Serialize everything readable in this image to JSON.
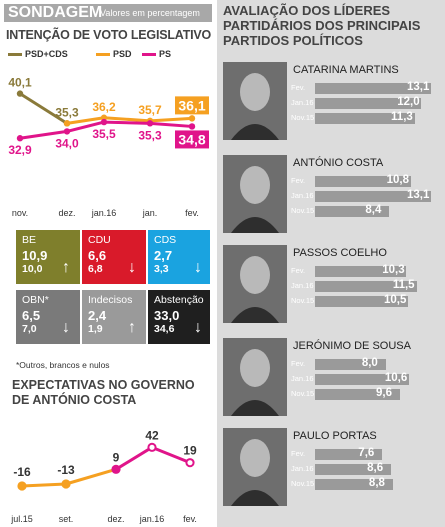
{
  "header": {
    "title": "SONDAGEM",
    "subtitle": "Valores em percentagem"
  },
  "vote_section": {
    "title": "INTENÇÃO DE VOTO LEGISLATIVO"
  },
  "parties": [
    {
      "name": "BE",
      "v_new": "10,9",
      "v_old": "10,0",
      "arrow": "up",
      "color": "#7f7f2c"
    },
    {
      "name": "CDU",
      "v_new": "6,6",
      "v_old": "6,8",
      "arrow": "down",
      "color": "#d91a2a"
    },
    {
      "name": "CDS",
      "v_new": "2,7",
      "v_old": "3,3",
      "arrow": "down",
      "color": "#1aa3e0"
    },
    {
      "name": "OBN*",
      "v_new": "6,5",
      "v_old": "7,0",
      "arrow": "down",
      "color": "#7a7a7a"
    },
    {
      "name": "Indecisos",
      "v_new": "2,4",
      "v_old": "1,9",
      "arrow": "up",
      "color": "#9a9a9a"
    },
    {
      "name": "Abstenção",
      "v_new": "33,0",
      "v_old": "34,6",
      "arrow": "down",
      "color": "#1f1f1f"
    }
  ],
  "footnote": "*Outros, brancos e nulos",
  "expect_section": {
    "title": "EXPECTATIVAS NO GOVERNO DE ANTÓNIO COSTA"
  },
  "right_panel": {
    "title": "AVALIAÇÃO DOS LÍDERES PARTIDÁRIOS DOS PRINCIPAIS PARTIDOS POLÍTICOS"
  },
  "leaders": [
    {
      "name": "CATARINA MARTINS",
      "rows": [
        {
          "label": "Fev.",
          "value": 13.1,
          "text": "13,1"
        },
        {
          "label": "Jan.16",
          "value": 12.0,
          "text": "12,0"
        },
        {
          "label": "Nov.15",
          "value": 11.3,
          "text": "11,3"
        }
      ]
    },
    {
      "name": "ANTÓNIO COSTA",
      "rows": [
        {
          "label": "Fev.",
          "value": 10.8,
          "text": "10,8"
        },
        {
          "label": "Jan.16",
          "value": 13.1,
          "text": "13,1"
        },
        {
          "label": "Nov.15",
          "value": 8.4,
          "text": "8,4"
        }
      ]
    },
    {
      "name": "PASSOS COELHO",
      "rows": [
        {
          "label": "Fev.",
          "value": 10.3,
          "text": "10,3"
        },
        {
          "label": "Jan.16",
          "value": 11.5,
          "text": "11,5"
        },
        {
          "label": "Nov.15",
          "value": 10.5,
          "text": "10,5"
        }
      ]
    },
    {
      "name": "JERÓNIMO DE SOUSA",
      "rows": [
        {
          "label": "Fev.",
          "value": 8.0,
          "text": "8,0"
        },
        {
          "label": "Jan.16",
          "value": 10.6,
          "text": "10,6"
        },
        {
          "label": "Nov.15",
          "value": 9.6,
          "text": "9,6"
        }
      ]
    },
    {
      "name": "PAULO PORTAS",
      "rows": [
        {
          "label": "Fev.",
          "value": 7.6,
          "text": "7,6"
        },
        {
          "label": "Jan.16",
          "value": 8.6,
          "text": "8,6"
        },
        {
          "label": "Nov.15",
          "value": 8.8,
          "text": "8,8"
        }
      ]
    }
  ],
  "chart_data": [
    {
      "type": "line",
      "title": "INTENÇÃO DE VOTO LEGISLATIVO",
      "categories": [
        "nov.",
        "dez.",
        "jan.16",
        "jan.",
        "fev."
      ],
      "series": [
        {
          "name": "PSD+CDS",
          "color": "#8a7a3a",
          "values": [
            40.1,
            35.3,
            null,
            null,
            null
          ],
          "labels": [
            "40,1",
            "35,3",
            "",
            "",
            ""
          ]
        },
        {
          "name": "PSD",
          "color": "#f5a021",
          "values": [
            null,
            35.3,
            36.2,
            35.7,
            36.1
          ],
          "labels": [
            "",
            "",
            "36,2",
            "35,7",
            "36,1"
          ]
        },
        {
          "name": "PS",
          "color": "#e0148a",
          "values": [
            32.9,
            34.0,
            35.5,
            35.3,
            34.8
          ],
          "labels": [
            "32,9",
            "34,0",
            "35,5",
            "35,3",
            "34,8"
          ]
        }
      ],
      "ylim": [
        31,
        41
      ],
      "legend": "top"
    },
    {
      "type": "line",
      "title": "EXPECTATIVAS NO GOVERNO DE ANTÓNIO COSTA",
      "categories": [
        "jul.15",
        "set.",
        "dez.",
        "jan.16",
        "fev."
      ],
      "series": [
        {
          "values": [
            -16,
            -13,
            9,
            42,
            19
          ],
          "labels": [
            "-16",
            "-13",
            "9",
            "42",
            "19"
          ]
        }
      ],
      "ylim": [
        -25,
        50
      ]
    }
  ]
}
